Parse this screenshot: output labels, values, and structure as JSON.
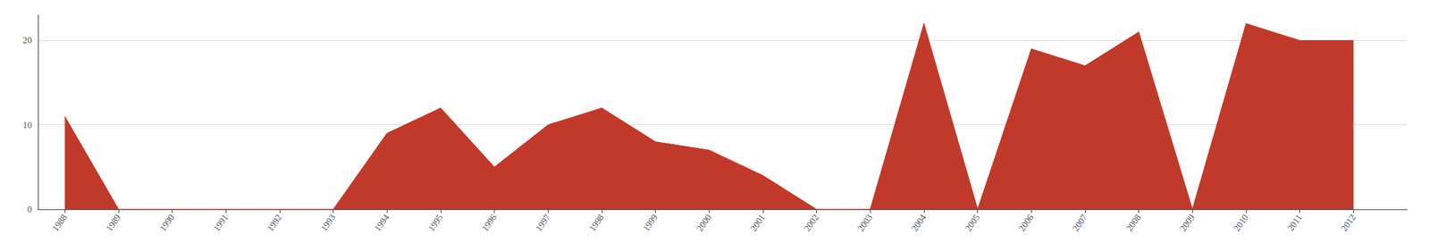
{
  "chart_data": {
    "type": "area",
    "x": [
      1988,
      1989,
      1990,
      1991,
      1992,
      1993,
      1994,
      1995,
      1996,
      1997,
      1998,
      1999,
      2000,
      2001,
      2002,
      2003,
      2004,
      2005,
      2006,
      2007,
      2008,
      2009,
      2010,
      2011,
      2012
    ],
    "values": [
      11,
      0,
      0,
      0,
      0,
      0,
      9,
      12,
      5,
      10,
      12,
      8,
      7,
      4,
      0,
      0,
      22,
      0,
      19,
      17,
      21,
      0,
      22,
      20,
      20
    ],
    "color": "#c0392b",
    "xlim": [
      1987.5,
      2013.0
    ],
    "xticks": [
      1988,
      1989,
      1990,
      1991,
      1992,
      1993,
      1994,
      1995,
      1996,
      1997,
      1998,
      1999,
      2000,
      2001,
      2002,
      2003,
      2004,
      2005,
      2006,
      2007,
      2008,
      2009,
      2010,
      2011,
      2012
    ],
    "ylim": [
      0,
      23
    ],
    "yticks": [
      0,
      10,
      20
    ],
    "grid": true
  }
}
